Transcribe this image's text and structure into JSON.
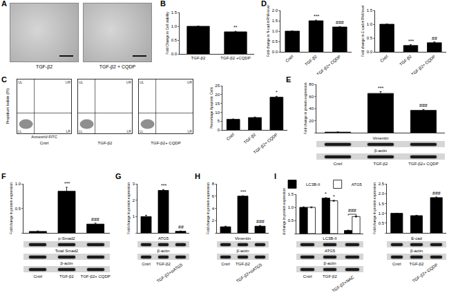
{
  "panel_A": {
    "panel": "A",
    "images": [
      {
        "label": "TGF-β2"
      },
      {
        "label": "TGF-β2 + CQDP"
      }
    ]
  },
  "flow_cytometry": {
    "panel": "C",
    "y_label": "Propidium Iodide (PI)",
    "x_label": "AnnexinV-FITC",
    "quadrants": [
      "UL",
      "UR",
      "LL",
      "LR"
    ],
    "samples": [
      "Cntrl",
      "TGF-β2",
      "TGF-β2+ CQDP"
    ]
  },
  "chart_data": [
    {
      "panel": "B",
      "type": "bar",
      "y_label": "Fold Change in Cell viability",
      "categories": [
        "TGF-β2",
        "TGF-β2 +CQDP"
      ],
      "values": [
        1.0,
        0.8
      ],
      "errors": [
        0,
        0.02
      ],
      "color": "#000000",
      "ylim": [
        0,
        1.5
      ],
      "yticks": [
        {
          "value": 0,
          "label": "0.0"
        },
        0.5,
        {
          "value": 1,
          "label": "1.0"
        },
        1.5
      ],
      "annotations": [
        {
          "category": "TGF-β2 +CQDP",
          "text": "**"
        }
      ]
    },
    {
      "type": "bar",
      "y_label": "Percentage Apoptotic Cells",
      "categories": [
        "Cntrl",
        "TGF-β2",
        "TGF-β2+ CQDP"
      ],
      "values": [
        6,
        7,
        18.5
      ],
      "errors": [
        0.2,
        0.3,
        0.5
      ],
      "color": "#000000",
      "ylim": [
        0,
        25
      ],
      "yticks": [
        0,
        5,
        10,
        15,
        20,
        25
      ],
      "annotations": [
        {
          "category": "TGF-β2+ CQDP",
          "text": "*"
        }
      ]
    },
    {
      "panel": "D",
      "type": "bar",
      "y_label": "Fold change in N-cad mRNA level",
      "categories": [
        "Cntrl",
        "TGF-β2",
        "TGF-β2+ CQDP"
      ],
      "values": [
        1.0,
        1.5,
        1.2
      ],
      "errors": [
        0,
        0.03,
        0.02
      ],
      "color": "#000000",
      "ylim": [
        0,
        2
      ],
      "yticks": [
        {
          "value": 0,
          "label": "0.0"
        },
        0.5,
        {
          "value": 1,
          "label": "1.0"
        },
        1.5,
        {
          "value": 2,
          "label": "2.0"
        }
      ],
      "annotations": [
        {
          "category": "TGF-β2",
          "text": "***"
        },
        {
          "category": "TGF-β2+ CQDP",
          "text": "###"
        }
      ]
    },
    {
      "type": "bar",
      "y_label": "Fold change in E-cad mRNA level",
      "categories": [
        "Cntrl",
        "TGF-β2",
        "TGF-β2+ CQDP"
      ],
      "values": [
        1.0,
        0.23,
        0.33
      ],
      "errors": [
        0,
        0.03,
        0.03
      ],
      "color": "#000000",
      "ylim": [
        0,
        1.5
      ],
      "yticks": [
        {
          "value": 0,
          "label": "0.0"
        },
        0.5,
        {
          "value": 1,
          "label": "1.0"
        },
        1.5
      ],
      "annotations": [
        {
          "category": "TGF-β2",
          "text": "***"
        },
        {
          "category": "TGF-β2+ CQDP",
          "text": "##"
        }
      ]
    },
    {
      "panel": "E",
      "type": "bar",
      "y_label": "Fold change in protein expression",
      "categories": [
        "Cntrl",
        "TGF-β2",
        "TGF-β2+ CQDP"
      ],
      "values": [
        1,
        65,
        37
      ],
      "errors": [
        0.3,
        3,
        1.5
      ],
      "color": "#000000",
      "ylim": [
        0,
        80
      ],
      "yticks": [
        0,
        20,
        40,
        60,
        80
      ],
      "tick_labels": "y",
      "annotations": [
        {
          "category": "TGF-β2",
          "text": "***"
        },
        {
          "category": "TGF-β2+ CQDP",
          "text": "###"
        }
      ],
      "blot": [
        "Vimentin",
        "β-actin"
      ]
    },
    {
      "panel": "F",
      "type": "bar",
      "y_label": "Fold change in protein expression",
      "categories": [
        "Cntrl",
        "TGF-β2",
        "TGF-β2+ CQDP"
      ],
      "values": [
        0.03,
        0.85,
        0.18
      ],
      "errors": [
        0.01,
        0.08,
        0.02
      ],
      "color": "#000000",
      "ylim": [
        0,
        1
      ],
      "yticks": [
        {
          "value": 0,
          "label": "0.0"
        },
        0.5,
        {
          "value": 1,
          "label": "1.0"
        }
      ],
      "tick_labels": "y",
      "annotations": [
        {
          "category": "TGF-β2",
          "text": "***"
        },
        {
          "category": "TGF-β2+ CQDP",
          "text": "###"
        }
      ],
      "blot": [
        "p-Smad2",
        "Total Smad2",
        "β-actin"
      ]
    },
    {
      "panel": "G",
      "type": "bar",
      "y_label": "Fold change in protein expression",
      "categories": [
        "Cntrl",
        "TGF-β2",
        "TGF-β2+siATG5"
      ],
      "values": [
        1.0,
        2.6,
        0.1
      ],
      "errors": [
        0.08,
        0.05,
        0.02
      ],
      "color": "#000000",
      "ylim": [
        0,
        3
      ],
      "yticks": [
        0,
        1,
        2,
        3
      ],
      "tick_labels": "y",
      "annotations": [
        {
          "category": "TGF-β2",
          "text": "***"
        },
        {
          "category": "TGF-β2+siATG5",
          "text": "##"
        }
      ],
      "blot": [
        "ATG5",
        "β-actin"
      ]
    },
    {
      "panel": "H",
      "type": "bar",
      "y_label": "Fold change in protein expression",
      "categories": [
        "Cntrl",
        "TGF-β2",
        "TGF-β2+siATG5"
      ],
      "values": [
        1.0,
        6.0,
        1.1
      ],
      "errors": [
        0.1,
        0.05,
        0.1
      ],
      "color": "#000000",
      "ylim": [
        0,
        8
      ],
      "yticks": [
        0,
        2,
        4,
        6,
        8
      ],
      "tick_labels": "y",
      "annotations": [
        {
          "category": "TGF-β2",
          "text": "***"
        },
        {
          "category": "TGF-β2+siATG5",
          "text": "###"
        }
      ],
      "blot": [
        "Vimentin",
        "β-actin"
      ]
    },
    {
      "panel": "I",
      "type": "bar",
      "y_label": "Fold change in protein expression",
      "categories": [
        "Cntrl",
        "TGF-β2",
        "TGF-β2+NAC"
      ],
      "series": [
        {
          "name": "LC3B-II",
          "color": "#000000",
          "values": [
            1.0,
            1.35,
            0.12
          ],
          "errors": [
            0.02,
            0.02,
            0.01
          ]
        },
        {
          "name": "ATG5",
          "color": "#ffffff",
          "values": [
            1.0,
            1.25,
            0.65
          ],
          "errors": [
            0.02,
            0.02,
            0.02
          ]
        }
      ],
      "ylim": [
        0,
        1.5
      ],
      "yticks": [
        {
          "value": 0,
          "label": "0.0"
        },
        0.5,
        {
          "value": 1,
          "label": "1.0"
        },
        1.5
      ],
      "tick_labels": "y",
      "legend": "top",
      "annotations": [
        {
          "category": "TGF-β2",
          "series": "LC3B-II",
          "text": "*"
        },
        {
          "category": "TGF-β2",
          "series": "ATG5",
          "text": "*"
        },
        {
          "category": "TGF-β2+NAC",
          "text": "###"
        }
      ],
      "blot": [
        "LC3B-II",
        "ATG5",
        "β-actin"
      ]
    },
    {
      "type": "bar",
      "y_label": "Fold change in protein expression",
      "categories": [
        "Cntrl",
        "TGF-β2",
        "TGF-β2+ CQDP"
      ],
      "values": [
        1.0,
        0.88,
        1.8
      ],
      "errors": [
        0,
        0.02,
        0.03
      ],
      "color": "#000000",
      "ylim": [
        0,
        2.5
      ],
      "yticks": [
        {
          "value": 0,
          "label": "0.0"
        },
        0.5,
        {
          "value": 1,
          "label": "1.0"
        },
        1.5,
        {
          "value": 2,
          "label": "2.0"
        },
        2.5
      ],
      "tick_labels": "y",
      "annotations": [
        {
          "category": "TGF-β2+ CQDP",
          "text": "###"
        }
      ],
      "blot": [
        "E-cad",
        "β-actin"
      ]
    }
  ]
}
